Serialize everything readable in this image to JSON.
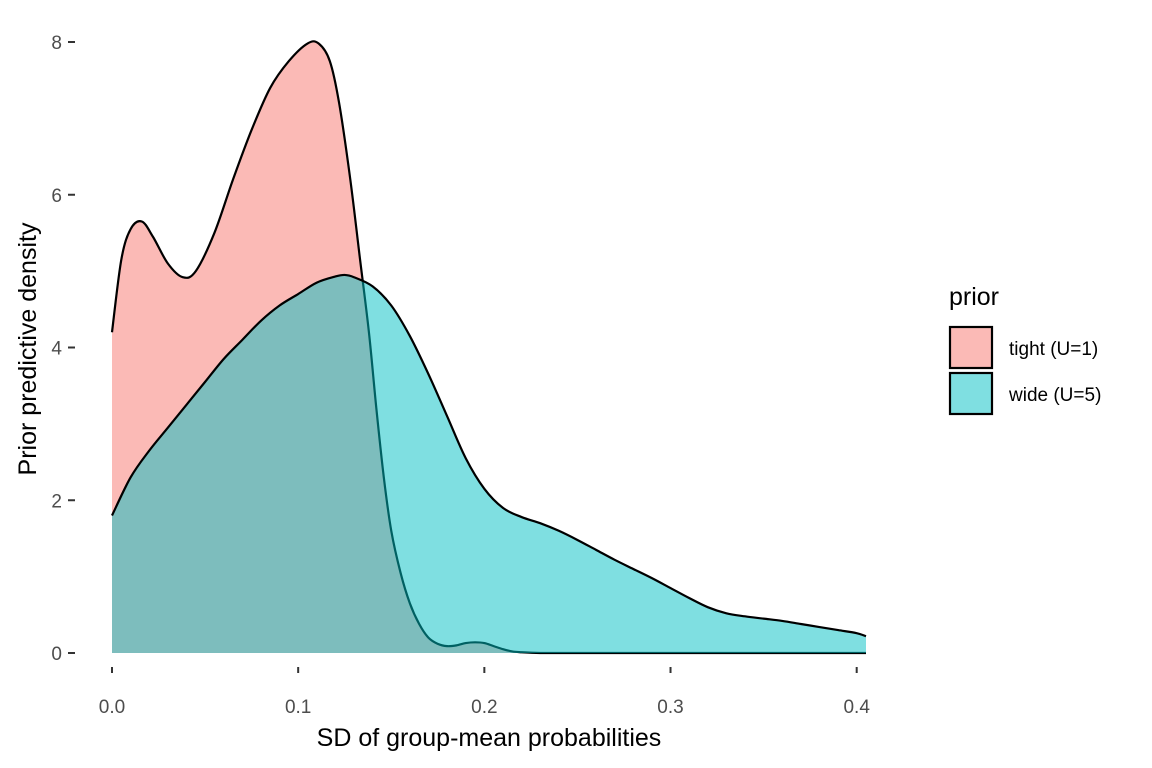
{
  "chart_data": {
    "type": "area",
    "xlabel": "SD of group-mean probabilities",
    "ylabel": "Prior predictive density",
    "xlim": [
      0.0,
      0.405
    ],
    "ylim": [
      0,
      8
    ],
    "x_ticks": [
      "0.0",
      "0.1",
      "0.2",
      "0.3",
      "0.4"
    ],
    "y_ticks": [
      "0",
      "2",
      "4",
      "6",
      "8"
    ],
    "grid": false,
    "legend": {
      "title": "prior",
      "position": "right"
    },
    "series": [
      {
        "name": "tight (U=1)",
        "color": "#F8766D",
        "x": [
          0.0,
          0.005,
          0.01,
          0.016,
          0.022,
          0.03,
          0.038,
          0.045,
          0.055,
          0.065,
          0.075,
          0.085,
          0.095,
          0.105,
          0.111,
          0.117,
          0.122,
          0.128,
          0.133,
          0.138,
          0.142,
          0.146,
          0.15,
          0.155,
          0.16,
          0.165,
          0.17,
          0.175,
          0.18,
          0.185,
          0.19,
          0.195,
          0.2,
          0.205,
          0.21,
          0.215,
          0.22,
          0.23,
          0.24,
          0.25,
          0.27,
          0.3,
          0.35,
          0.405
        ],
        "y": [
          4.2,
          5.15,
          5.55,
          5.65,
          5.45,
          5.1,
          4.92,
          5.0,
          5.5,
          6.2,
          6.85,
          7.4,
          7.75,
          7.98,
          7.98,
          7.75,
          7.2,
          6.2,
          5.2,
          4.2,
          3.2,
          2.3,
          1.6,
          1.05,
          0.65,
          0.38,
          0.2,
          0.12,
          0.09,
          0.1,
          0.13,
          0.14,
          0.13,
          0.09,
          0.05,
          0.02,
          0.01,
          0.0,
          0.0,
          0.0,
          0.0,
          0.0,
          0.0,
          0.0
        ]
      },
      {
        "name": "wide (U=5)",
        "color": "#00BFC4",
        "x": [
          0.0,
          0.01,
          0.02,
          0.03,
          0.04,
          0.05,
          0.06,
          0.07,
          0.08,
          0.09,
          0.1,
          0.11,
          0.12,
          0.125,
          0.13,
          0.14,
          0.15,
          0.16,
          0.17,
          0.18,
          0.19,
          0.2,
          0.21,
          0.22,
          0.23,
          0.24,
          0.25,
          0.26,
          0.27,
          0.28,
          0.29,
          0.3,
          0.31,
          0.32,
          0.33,
          0.34,
          0.35,
          0.36,
          0.37,
          0.38,
          0.39,
          0.4,
          0.405
        ],
        "y": [
          1.8,
          2.3,
          2.65,
          2.95,
          3.25,
          3.55,
          3.85,
          4.1,
          4.35,
          4.55,
          4.7,
          4.85,
          4.93,
          4.95,
          4.92,
          4.8,
          4.55,
          4.15,
          3.65,
          3.1,
          2.55,
          2.15,
          1.9,
          1.78,
          1.7,
          1.6,
          1.48,
          1.35,
          1.22,
          1.1,
          0.98,
          0.85,
          0.72,
          0.6,
          0.52,
          0.48,
          0.45,
          0.42,
          0.38,
          0.34,
          0.3,
          0.26,
          0.22
        ]
      }
    ]
  }
}
